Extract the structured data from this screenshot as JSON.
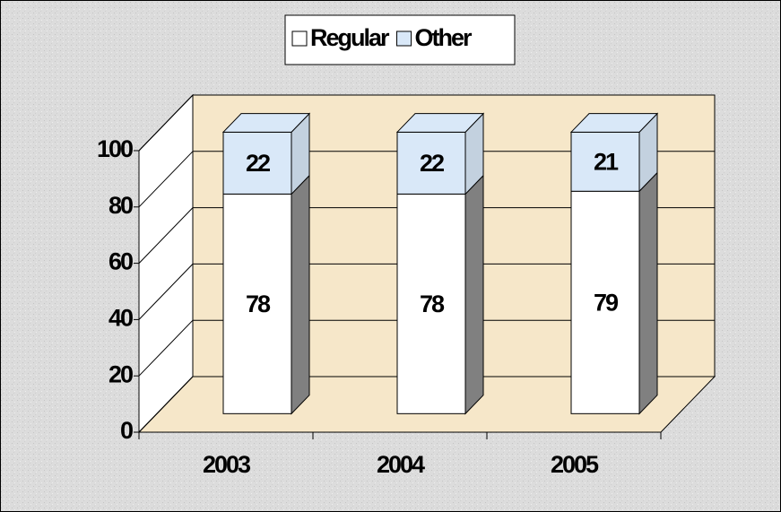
{
  "chart_data": {
    "type": "bar3d_stacked",
    "categories": [
      "2003",
      "2004",
      "2005"
    ],
    "series": [
      {
        "name": "Regular",
        "color": "#ffffff",
        "values": [
          78,
          78,
          79
        ]
      },
      {
        "name": "Other",
        "color": "#d9e8f8",
        "values": [
          22,
          22,
          21
        ]
      }
    ],
    "ylim": [
      0,
      100
    ],
    "yticks": [
      0,
      20,
      40,
      60,
      80,
      100
    ],
    "grid": true,
    "legend": "top"
  }
}
